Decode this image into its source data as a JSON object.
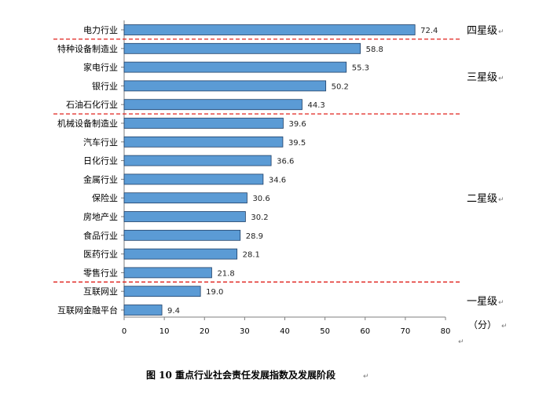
{
  "chart_data": {
    "type": "bar",
    "orientation": "horizontal",
    "categories": [
      "电力行业",
      "特种设备制造业",
      "家电行业",
      "银行业",
      "石油石化行业",
      "机械设备制造业",
      "汽车行业",
      "日化行业",
      "金属行业",
      "保险业",
      "房地产业",
      "食品行业",
      "医药行业",
      "零售行业",
      "互联网业",
      "互联网金融平台"
    ],
    "values": [
      72.4,
      58.8,
      55.3,
      50.2,
      44.3,
      39.6,
      39.5,
      36.6,
      34.6,
      30.6,
      30.2,
      28.9,
      28.1,
      21.8,
      19.0,
      9.4
    ],
    "value_labels": [
      "72.4",
      "58.8",
      "55.3",
      "50.2",
      "44.3",
      "39.6",
      "39.5",
      "36.6",
      "34.6",
      "30.6",
      "30.2",
      "28.9",
      "28.1",
      "21.8",
      "19.0",
      "9.4"
    ],
    "xlim": [
      0,
      80
    ],
    "xticks": [
      0,
      10,
      20,
      30,
      40,
      50,
      60,
      70,
      80
    ],
    "unit_label": "（分）",
    "bar_color": "#5b9bd5",
    "bar_edge_color": "#1f3f66",
    "divider_color": "#e0201b",
    "tiers": [
      {
        "label": "四星级",
        "categories": [
          "电力行业"
        ]
      },
      {
        "label": "三星级",
        "categories": [
          "特种设备制造业",
          "家电行业",
          "银行业",
          "石油石化行业"
        ]
      },
      {
        "label": "二星级",
        "categories": [
          "机械设备制造业",
          "汽车行业",
          "日化行业",
          "金属行业",
          "保险业",
          "房地产业",
          "食品行业",
          "医药行业",
          "零售行业"
        ]
      },
      {
        "label": "一星级",
        "categories": [
          "互联网业",
          "互联网金融平台"
        ]
      }
    ],
    "dividers_after_category": [
      "电力行业",
      "石油石化行业",
      "零售行业"
    ],
    "grid": false,
    "caption": "图 10  重点行业社会责任发展指数及发展阶段",
    "return_mark": "↵"
  }
}
